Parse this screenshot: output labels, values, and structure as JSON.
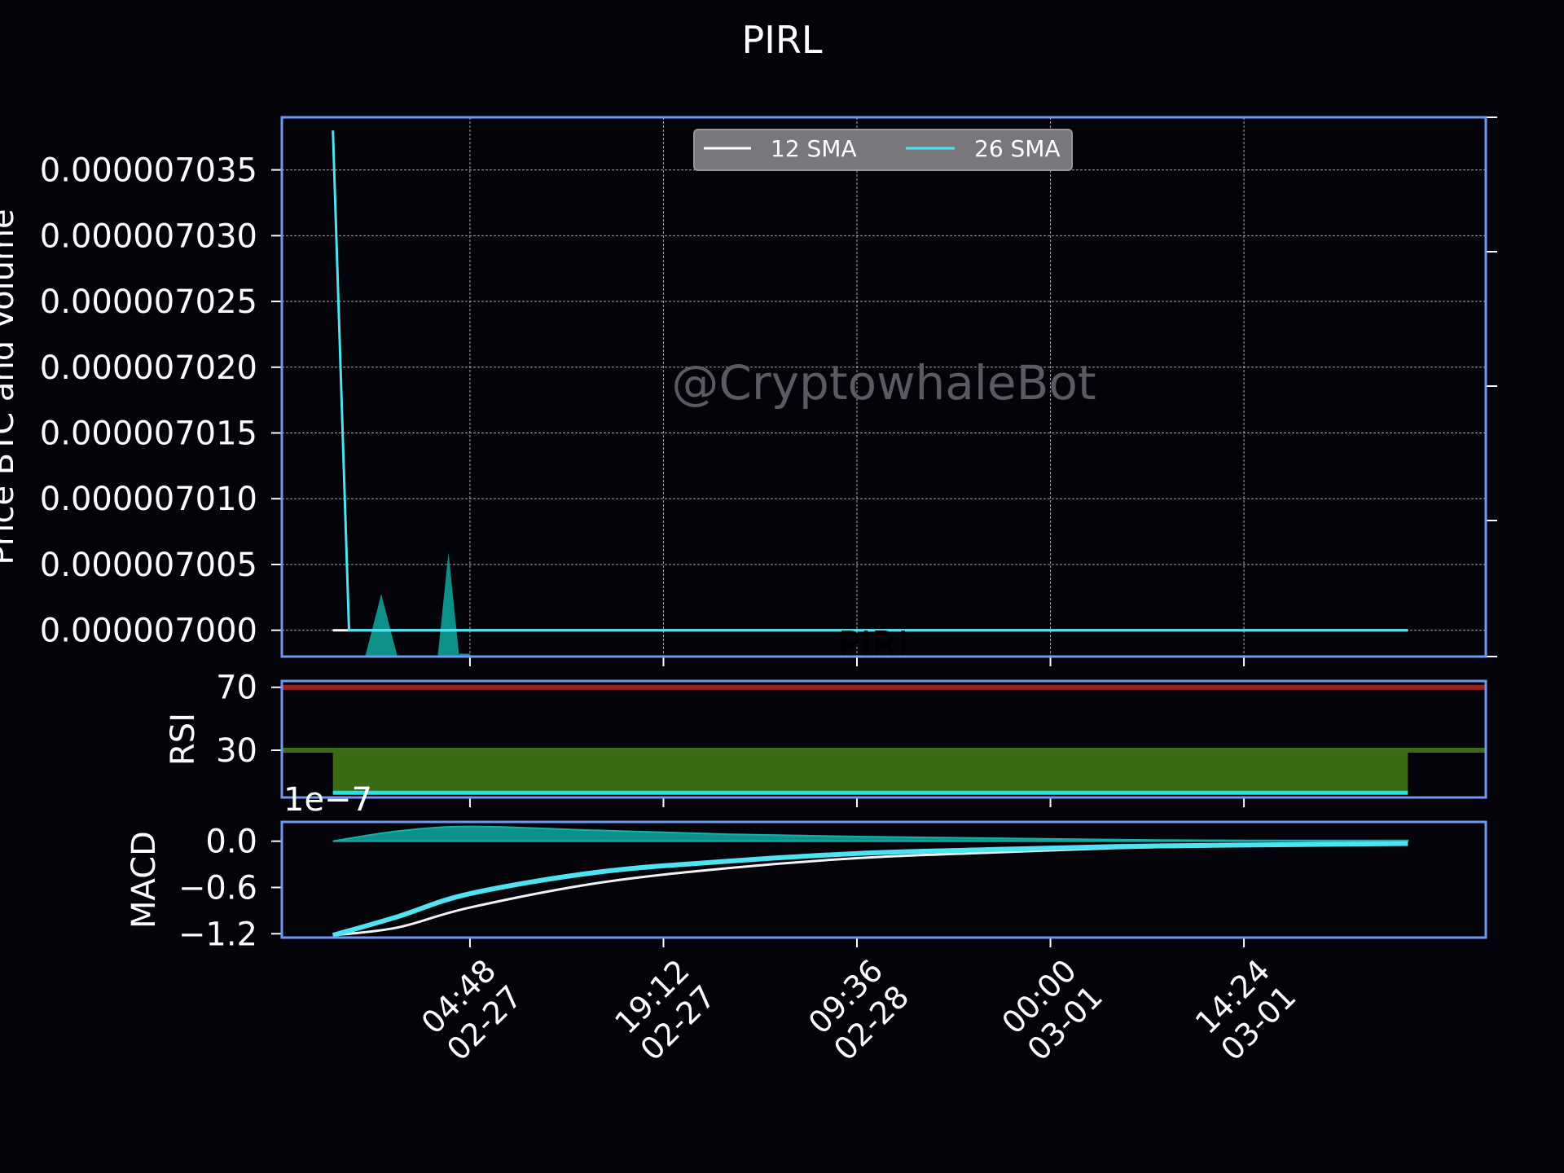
{
  "chart_data": {
    "title": "PIRL",
    "watermark": "@CryptowhaleBot",
    "overlay_text": "PIRL",
    "x_ticks": [
      {
        "time": "04:48",
        "date": "02-27"
      },
      {
        "time": "19:12",
        "date": "02-27"
      },
      {
        "time": "09:36",
        "date": "02-28"
      },
      {
        "time": "00:00",
        "date": "03-01"
      },
      {
        "time": "14:24",
        "date": "03-01"
      }
    ],
    "x_range": [
      "02-26 14:48",
      "03-02 08:24"
    ],
    "series_x_range": [
      "02-26 18:36",
      "03-02 02:36"
    ],
    "colors": {
      "background": "#05030a",
      "axis_frame": "#6f98f0",
      "grid": "#cfcfcf",
      "sma12": "#ffffff",
      "sma26": "#4fe3f2",
      "volume": "#0d8f8a",
      "rsi_high": "#a02020",
      "rsi_low": "#3b6b14",
      "rsi_fill": "#3a6b12",
      "rsi_line": "#1ce6e6",
      "macd_line": "#f2f2f2",
      "signal_line": "#4fe3f2",
      "histogram": "#0d8f8a",
      "legend_bg": "#7a777c"
    },
    "price_panel": {
      "type": "line",
      "ylabel": "Price BTC and Volume",
      "ylim": [
        6.998e-06,
        7.039e-06
      ],
      "y_ticks": [
        "0.000007000",
        "0.000007005",
        "0.000007010",
        "0.000007015",
        "0.000007020",
        "0.000007025",
        "0.000007030",
        "0.000007035"
      ],
      "grid": true,
      "legend": {
        "placement": "top-center",
        "entries": [
          "12 SMA",
          "26 SMA"
        ]
      },
      "sma12": {
        "name": "12 SMA",
        "x": [
          "02-26 18:36",
          "02-26 19:48",
          "03-02 02:36"
        ],
        "y": [
          7e-06,
          7e-06,
          7e-06
        ]
      },
      "sma26": {
        "name": "26 SMA",
        "x": [
          "02-26 18:36",
          "02-26 19:48",
          "03-02 02:36"
        ],
        "y": [
          7.038e-06,
          7e-06,
          7e-06
        ]
      },
      "volume_peaks": [
        {
          "x": [
            "02-26 21:00",
            "02-26 22:12",
            "02-26 23:24"
          ],
          "h": [
            0,
            0.6,
            0
          ]
        },
        {
          "x": [
            "02-27 02:24",
            "02-27 03:12",
            "02-27 04:00"
          ],
          "h": [
            0,
            1.0,
            0
          ]
        }
      ]
    },
    "rsi_panel": {
      "type": "line",
      "ylabel": "RSI",
      "ylim": [
        0,
        74
      ],
      "y_ticks": [
        "70",
        "30"
      ],
      "levels": [
        70,
        30
      ],
      "rsi_value": 3,
      "fill_between": [
        3,
        31
      ]
    },
    "macd_panel": {
      "type": "line",
      "ylabel": "MACD",
      "offset_text": "1e−7",
      "ylim": [
        -1.25,
        0.25
      ],
      "y_ticks": [
        "0.0",
        "−0.6",
        "−1.2"
      ],
      "macd": {
        "x": [
          "02-26 18:36",
          "02-26 23:24",
          "02-27 04:48",
          "02-27 14:24",
          "02-28 00:00",
          "02-28 09:36",
          "02-28 19:12",
          "03-01 04:48",
          "03-01 14:24",
          "03-02 02:36"
        ],
        "y": [
          -1.22,
          -1.12,
          -0.86,
          -0.54,
          -0.35,
          -0.22,
          -0.15,
          -0.09,
          -0.06,
          -0.04
        ]
      },
      "signal": {
        "x": [
          "02-26 18:36",
          "02-26 23:24",
          "02-27 04:48",
          "02-27 14:24",
          "02-28 00:00",
          "02-28 09:36",
          "02-28 19:12",
          "03-01 04:48",
          "03-01 14:24",
          "03-02 02:36"
        ],
        "y": [
          -1.22,
          -0.98,
          -0.68,
          -0.4,
          -0.26,
          -0.16,
          -0.11,
          -0.07,
          -0.05,
          -0.03
        ]
      },
      "histogram": {
        "x": [
          "02-26 18:36",
          "02-26 23:24",
          "02-27 04:48",
          "02-27 14:24",
          "02-28 00:00",
          "02-28 09:36",
          "02-28 19:12",
          "03-01 04:48",
          "03-01 14:24",
          "03-02 02:36"
        ],
        "y": [
          0,
          0.13,
          0.19,
          0.14,
          0.09,
          0.06,
          0.04,
          0.02,
          0.01,
          0.01
        ]
      }
    }
  }
}
